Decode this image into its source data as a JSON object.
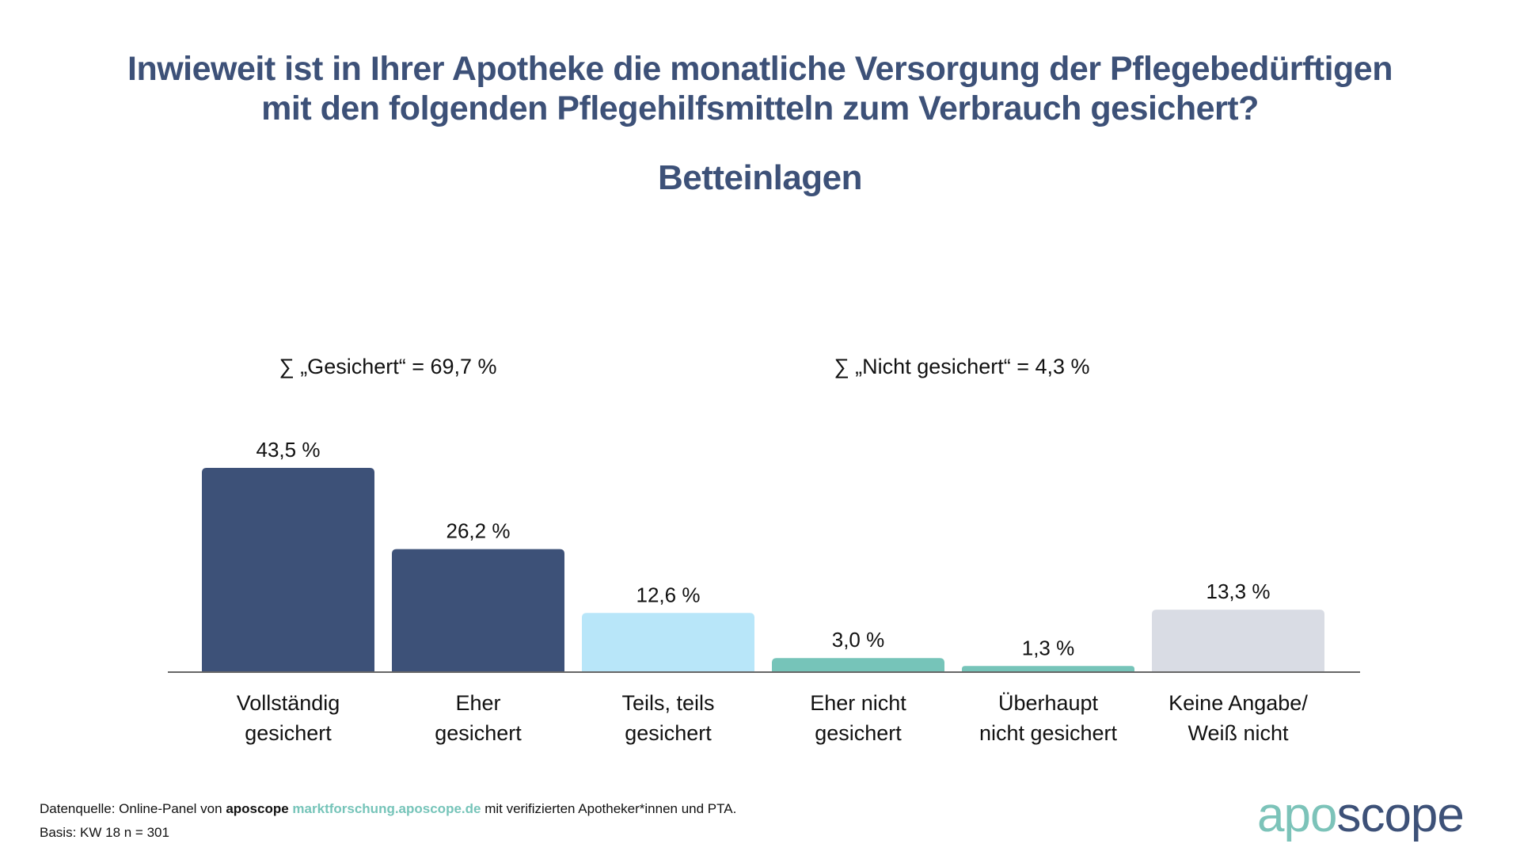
{
  "header": {
    "title_line1": "Inwieweit ist in Ihrer Apotheke die monatliche Versorgung der Pflegebedürftigen",
    "title_line2": "mit den folgenden Pflegehilfsmitteln zum Verbrauch gesichert?",
    "subtitle": "Betteinlagen"
  },
  "sums": {
    "gesichert": "∑ „Gesichert“ = 69,7 %",
    "nicht_gesichert": "∑ „Nicht gesichert“ = 4,3 %"
  },
  "chart_data": {
    "type": "bar",
    "title": "Betteinlagen",
    "categories": [
      [
        "Vollständig",
        "gesichert"
      ],
      [
        "Eher",
        "gesichert"
      ],
      [
        "Teils, teils",
        "gesichert"
      ],
      [
        "Eher nicht",
        "gesichert"
      ],
      [
        "Überhaupt",
        "nicht gesichert"
      ],
      [
        "Keine Angabe/",
        "Weiß nicht"
      ]
    ],
    "values": [
      43.5,
      26.2,
      12.6,
      3.0,
      1.3,
      13.3
    ],
    "labels": [
      "43,5 %",
      "26,2 %",
      "12,6 %",
      "3,0 %",
      "1,3 %",
      "13,3 %"
    ],
    "colors": [
      "#3d5178",
      "#3d5178",
      "#b8e6f9",
      "#76c4b9",
      "#76c4b9",
      "#d9dce4"
    ],
    "ylim": [
      0,
      45
    ],
    "grid": false,
    "xlabel": "",
    "ylabel": ""
  },
  "footer": {
    "source_prefix": "Datenquelle: Online-Panel von ",
    "source_brand": "aposcope",
    "source_link": "marktforschung.aposcope.de",
    "source_suffix": " mit verifizierten Apotheker*innen und PTA.",
    "basis": "Basis: KW 18 n = 301"
  },
  "logo": {
    "part1": "apo",
    "part2": "scope"
  }
}
